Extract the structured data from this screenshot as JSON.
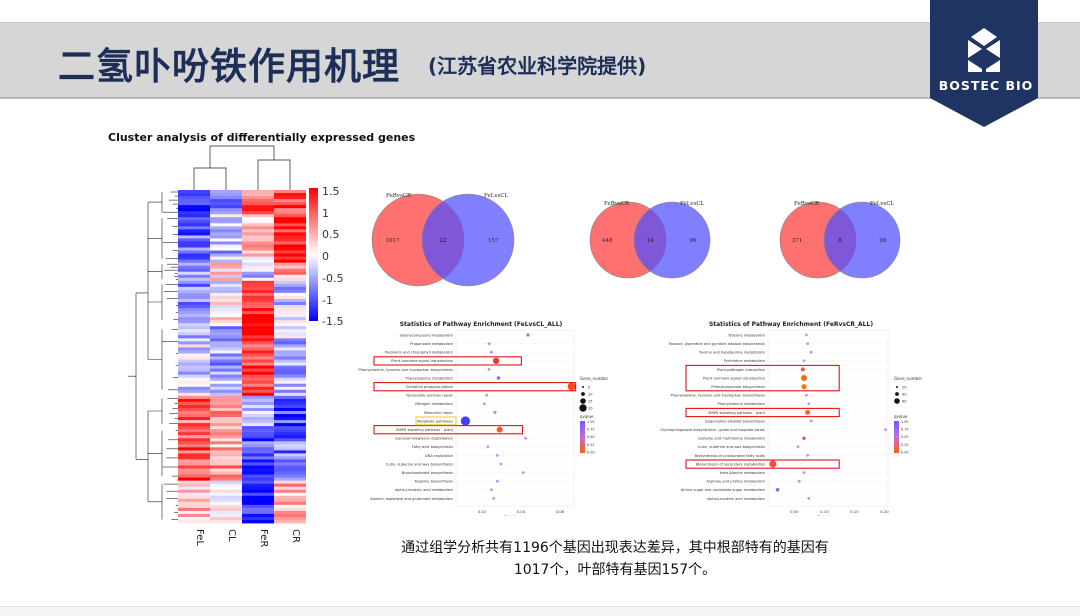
{
  "header": {
    "title": "二氢卟吩铁作用机理",
    "subtitle": "(江苏省农业科学院提供)",
    "logo_text": "BOSTEC BIO"
  },
  "heatmap": {
    "title": "Cluster analysis of differentially expressed genes",
    "columns": [
      "FeL",
      "CL",
      "FeR",
      "CR"
    ],
    "colorbar_ticks": [
      "1.5",
      "1",
      "0.5",
      "0",
      "-0.5",
      "-1",
      "-1.5"
    ]
  },
  "venns": [
    {
      "left_label": "FeRvsCR",
      "right_label": "FeLvsCL",
      "left_only": "1017",
      "overlap": "22",
      "right_only": "157"
    },
    {
      "left_label": "FeRvsCR",
      "right_label": "FeLvsCL",
      "left_only": "448",
      "overlap": "14",
      "right_only": "96"
    },
    {
      "left_label": "FeRvsCR",
      "right_label": "FeLvsCL",
      "left_only": "371",
      "overlap": "8",
      "right_only": "98"
    }
  ],
  "enrichment": [
    {
      "title": "Statistics of Pathway Enrichment (FeLvsCL_ALL)",
      "xlabel": "Rich factor",
      "xticks": [
        "0.02",
        "0.04",
        "0.06"
      ],
      "legend_size_title": "Gene_number",
      "legend_sizes": [
        "5",
        "10",
        "15",
        "20"
      ],
      "legend_color_title": "qvalue",
      "legend_color_ticks": [
        "1.00",
        "0.75",
        "0.50",
        "0.25",
        "0.00"
      ],
      "pathways": [
        "Selenocompound metabolism",
        "Propanoate metabolism",
        "Porphyrin and chlorophyll metabolism",
        "Plant hormone signal transduction",
        "Phenylalanine, tyrosine and tryptophan biosynthesis",
        "Phenylalanine metabolism",
        "Oxidative phosphorylation",
        "Nucleotide excision repair",
        "Nitrogen metabolism",
        "Mismatch repair",
        "Metabolic pathways",
        "MAPK signaling pathway - plant",
        "Glycosaminoglycan degradation",
        "Fatty acid biosynthesis",
        "DNA replication",
        "Cutin, suberine and wax biosynthesis",
        "Brassinosteroid biosynthesis",
        "Arginine biosynthesis",
        "alpha-Linolenic acid metabolism",
        "Alanine, aspartate and glutamate metabolism"
      ]
    },
    {
      "title": "Statistics of Pathway Enrichment (FeRvsCR_ALL)",
      "xlabel": "Rich factor",
      "xticks": [
        "0.05",
        "0.10",
        "0.15",
        "0.20"
      ],
      "legend_size_title": "Gene_number",
      "legend_sizes": [
        "20",
        "40",
        "60"
      ],
      "legend_color_title": "qvalue",
      "legend_color_ticks": [
        "1.00",
        "0.75",
        "0.50",
        "0.25",
        "0.00"
      ],
      "pathways": [
        "Tyrosine metabolism",
        "Tropane, piperidine and pyridine alkaloid biosynthesis",
        "Taurine and hypotaurine metabolism",
        "Pyrimidine metabolism",
        "Plant-pathogen interaction",
        "Plant hormone signal transduction",
        "Phenylpropanoid biosynthesis",
        "Phenylalanine, tyrosine and tryptophan biosynthesis",
        "Phenylalanine metabolism",
        "MAPK signaling pathway - plant",
        "Isoquinoline alkaloid biosynthesis",
        "Glycosphingolipid biosynthesis - globo and isoglobo series",
        "Cysteine and methionine metabolism",
        "Cutin, suberine and wax biosynthesis",
        "Biosynthesis of unsaturated fatty acids",
        "Biosynthesis of secondary metabolites",
        "beta-Alanine metabolism",
        "Arginine and proline metabolism",
        "Amino sugar and nucleotide sugar metabolism",
        "alpha-Linolenic acid metabolism"
      ]
    }
  ],
  "caption": {
    "line1": "通过组学分析共有1196个基因出现表达差异，其中根部特有的基因有",
    "line2": "1017个，叶部特有基因157个。"
  },
  "colors": {
    "title": "#1d2f57",
    "logo_bg": "#1f3462",
    "heat_high": "#ff0000",
    "heat_low": "#0000ff",
    "venn_left": "#ff6b6b",
    "venn_right": "#5b5bff",
    "highlight_box": "#e01515"
  }
}
